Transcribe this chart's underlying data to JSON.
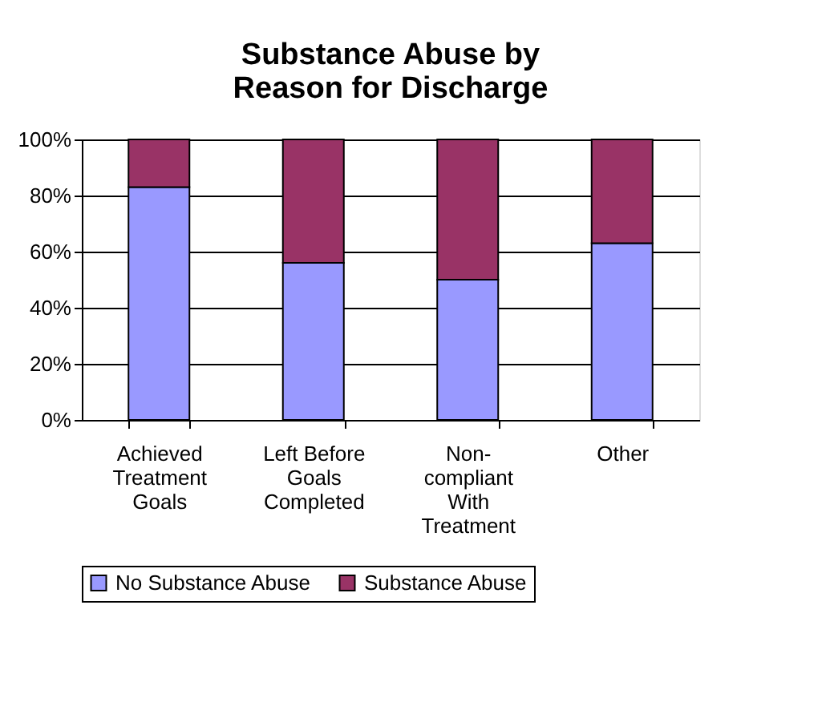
{
  "chart_data": {
    "type": "bar",
    "title": "Substance Abuse by Reason for Discharge",
    "categories": [
      "Achieved Treatment Goals",
      "Left Before Goals Completed",
      "Non-compliant With Treatment",
      "Other"
    ],
    "stacked": true,
    "series": [
      {
        "name": "No Substance Abuse",
        "color": "#9999ff",
        "values": [
          83,
          56,
          50,
          63
        ]
      },
      {
        "name": "Substance Abuse",
        "color": "#993366",
        "values": [
          17,
          44,
          50,
          37
        ]
      }
    ],
    "ylim": [
      0,
      100
    ],
    "yticks": [
      {
        "value": 0,
        "label": "0%"
      },
      {
        "value": 20,
        "label": "20%"
      },
      {
        "value": 40,
        "label": "40%"
      },
      {
        "value": 60,
        "label": "60%"
      },
      {
        "value": 80,
        "label": "80%"
      },
      {
        "value": 100,
        "label": "100%"
      }
    ],
    "grid": "y",
    "legend": "bottom"
  }
}
